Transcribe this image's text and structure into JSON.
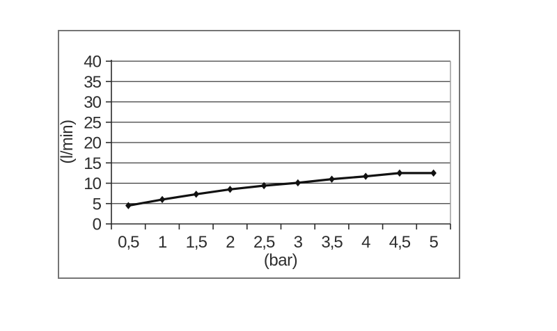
{
  "figure": {
    "description": "flow-rate-vs-pressure-curve"
  },
  "colors": {
    "background": "#ffffff",
    "text": "#2e2e2e",
    "grid": "#3c3c3c",
    "axis": "#2a2a2a",
    "plot_border": "#9e9e9e",
    "frame_border": "#757575",
    "line": "#111111",
    "marker": "#111111"
  },
  "chart_data": {
    "type": "line",
    "title": "",
    "xlabel": "(bar)",
    "ylabel": "(l/min)",
    "x": [
      0.5,
      1,
      1.5,
      2,
      2.5,
      3,
      3.5,
      4,
      4.5,
      5
    ],
    "x_tick_labels": [
      "0,5",
      "1",
      "1,5",
      "2",
      "2,5",
      "3",
      "3,5",
      "4",
      "4,5",
      "5"
    ],
    "y_tick_labels": [
      "0",
      "5",
      "10",
      "15",
      "20",
      "25",
      "30",
      "35",
      "40"
    ],
    "ylim": [
      0,
      40
    ],
    "ytick_step": 5,
    "grid": "horizontal",
    "legend": "none",
    "marker": "diamond",
    "series": [
      {
        "values": [
          4.5,
          6,
          7.3,
          8.5,
          9.4,
          10.1,
          11,
          11.7,
          12.5,
          12.5
        ]
      }
    ]
  }
}
